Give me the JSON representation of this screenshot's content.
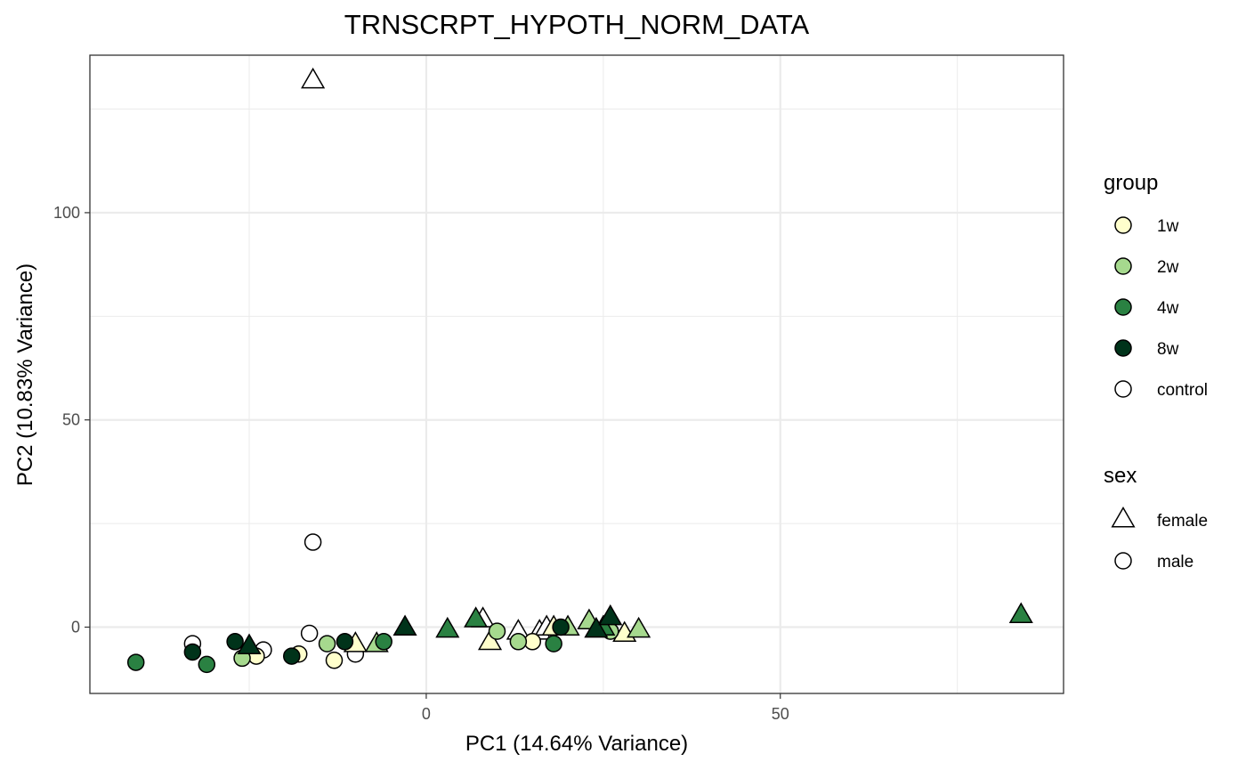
{
  "chart_data": {
    "type": "scatter",
    "title": "TRNSCRPT_HYPOTH_NORM_DATA",
    "xlabel": "PC1 (14.64% Variance)",
    "ylabel": "PC2 (10.83% Variance)",
    "xlim": [
      -47.5,
      90
    ],
    "ylim": [
      -16,
      138
    ],
    "x_ticks": [
      0,
      50
    ],
    "y_ticks": [
      0,
      50,
      100
    ],
    "x_minor": [
      -25,
      25,
      75
    ],
    "y_minor": [
      25,
      75,
      125
    ],
    "grid": true,
    "legend_position": "right",
    "group_legend": {
      "title": "group",
      "items": [
        {
          "label": "1w",
          "color": "#FFFFCC"
        },
        {
          "label": "2w",
          "color": "#A6D98E"
        },
        {
          "label": "4w",
          "color": "#2A8142"
        },
        {
          "label": "8w",
          "color": "#00331A"
        },
        {
          "label": "control",
          "color": "#FFFFFF"
        }
      ]
    },
    "shape_legend": {
      "title": "sex",
      "items": [
        {
          "label": "female",
          "shape": "triangle"
        },
        {
          "label": "male",
          "shape": "circle"
        }
      ]
    },
    "series": [
      {
        "group": "control",
        "sex": "female",
        "points": [
          [
            -16,
            132
          ],
          [
            8,
            2
          ],
          [
            13,
            -1
          ],
          [
            16,
            -1
          ],
          [
            17,
            0
          ]
        ]
      },
      {
        "group": "control",
        "sex": "male",
        "points": [
          [
            -16,
            20.5
          ],
          [
            -33,
            -4
          ],
          [
            -23,
            -5.5
          ],
          [
            -16.5,
            -1.5
          ],
          [
            -10,
            -6.5
          ]
        ]
      },
      {
        "group": "1w",
        "sex": "female",
        "points": [
          [
            -10,
            -4
          ],
          [
            9,
            -3.5
          ],
          [
            18,
            0
          ],
          [
            28,
            -1.5
          ]
        ]
      },
      {
        "group": "1w",
        "sex": "male",
        "points": [
          [
            -18,
            -6.5
          ],
          [
            -24,
            -7
          ],
          [
            -13,
            -8
          ],
          [
            15,
            -3.5
          ]
        ]
      },
      {
        "group": "2w",
        "sex": "female",
        "points": [
          [
            -7,
            -4
          ],
          [
            20,
            0
          ],
          [
            23,
            1.5
          ],
          [
            30,
            -0.5
          ]
        ]
      },
      {
        "group": "2w",
        "sex": "male",
        "points": [
          [
            -26,
            -7.5
          ],
          [
            -14,
            -4
          ],
          [
            10,
            -1
          ],
          [
            13,
            -3.5
          ],
          [
            26,
            -1
          ]
        ]
      },
      {
        "group": "4w",
        "sex": "female",
        "points": [
          [
            3,
            -0.5
          ],
          [
            7,
            2
          ],
          [
            25,
            0
          ],
          [
            84,
            3
          ]
        ]
      },
      {
        "group": "4w",
        "sex": "male",
        "points": [
          [
            -41,
            -8.5
          ],
          [
            -31,
            -9
          ],
          [
            -6,
            -3.5
          ],
          [
            18,
            -4
          ]
        ]
      },
      {
        "group": "8w",
        "sex": "female",
        "points": [
          [
            -25,
            -4.5
          ],
          [
            -3,
            0
          ],
          [
            24,
            -0.5
          ],
          [
            26,
            2.5
          ]
        ]
      },
      {
        "group": "8w",
        "sex": "male",
        "points": [
          [
            -33,
            -6
          ],
          [
            -27,
            -3.5
          ],
          [
            -19,
            -7
          ],
          [
            -11.5,
            -3.5
          ],
          [
            19,
            0
          ]
        ]
      }
    ]
  }
}
